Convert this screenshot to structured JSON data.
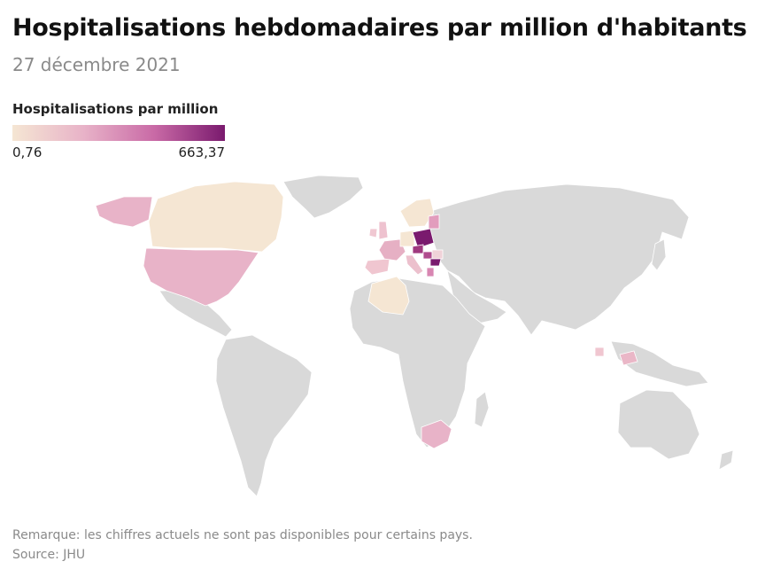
{
  "header": {
    "title": "Hospitalisations hebdomadaires par million d'habitants",
    "subtitle": "27 décembre 2021"
  },
  "legend": {
    "title": "Hospitalisations par million",
    "min_label": "0,76",
    "max_label": "663,37",
    "colors": [
      "#f5e6d3",
      "#e8b3c8",
      "#c96aa6",
      "#7a1a6e"
    ]
  },
  "map": {
    "no_data_color": "#d9d9d9",
    "regions": [
      {
        "name": "canada",
        "color": "#f5e6d3"
      },
      {
        "name": "alaska",
        "color": "#e8b3c8"
      },
      {
        "name": "united-states",
        "color": "#e8b3c8"
      },
      {
        "name": "algeria",
        "color": "#f5e6d3"
      },
      {
        "name": "south-africa",
        "color": "#e8b3c8"
      },
      {
        "name": "spain",
        "color": "#f0c6d0"
      },
      {
        "name": "france",
        "color": "#e6b0c4"
      },
      {
        "name": "united-kingdom",
        "color": "#eec2cf"
      },
      {
        "name": "ireland",
        "color": "#f0c8d2"
      },
      {
        "name": "scandinavia",
        "color": "#f5e6d3"
      },
      {
        "name": "italy",
        "color": "#ecc0cd"
      },
      {
        "name": "germany",
        "color": "#f5e6d3"
      },
      {
        "name": "poland",
        "color": "#7a1a6e"
      },
      {
        "name": "czechia",
        "color": "#a0397f"
      },
      {
        "name": "hungary",
        "color": "#b04c8e"
      },
      {
        "name": "romania",
        "color": "#f0d2d8"
      },
      {
        "name": "bulgaria",
        "color": "#7a1a6e"
      },
      {
        "name": "greece",
        "color": "#d886b2"
      },
      {
        "name": "baltics",
        "color": "#e29dbd"
      },
      {
        "name": "malaysia",
        "color": "#eab7c7"
      },
      {
        "name": "thailand",
        "color": "#f0c6d0"
      },
      {
        "name": "greenland-no-data",
        "color": "#d9d9d9"
      }
    ]
  },
  "footer": {
    "note": "Remarque: les chiffres actuels ne sont pas disponibles pour certains pays.",
    "source": "Source: JHU"
  }
}
